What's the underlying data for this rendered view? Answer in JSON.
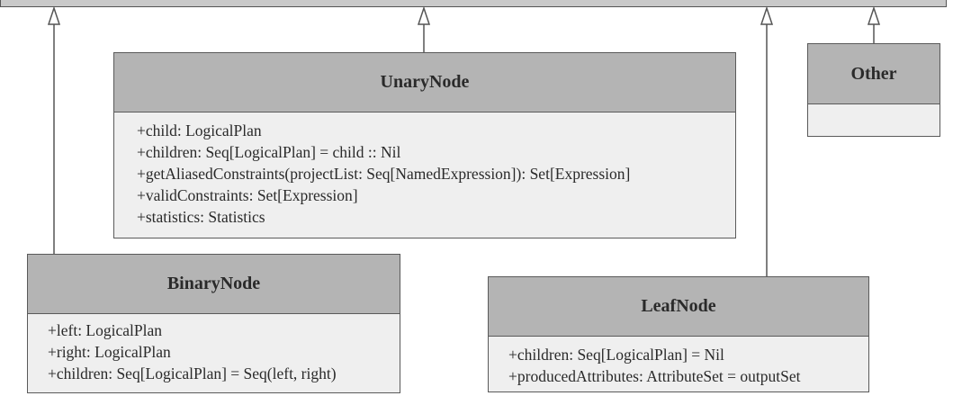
{
  "diagram": {
    "classes": {
      "unary_node": {
        "name": "UnaryNode",
        "members": [
          "+child: LogicalPlan",
          "+children: Seq[LogicalPlan] = child :: Nil",
          "+getAliasedConstraints(projectList: Seq[NamedExpression]): Set[Expression]",
          "+validConstraints: Set[Expression]",
          "+statistics: Statistics"
        ]
      },
      "other": {
        "name": "Other",
        "members": []
      },
      "binary_node": {
        "name": "BinaryNode",
        "members": [
          "+left: LogicalPlan",
          "+right: LogicalPlan",
          "+children: Seq[LogicalPlan] = Seq(left, right)"
        ]
      },
      "leaf_node": {
        "name": "LeafNode",
        "members": [
          "+children: Seq[LogicalPlan] = Nil",
          "+producedAttributes: AttributeSet = outputSet"
        ]
      }
    },
    "relations": [
      {
        "from": "binary_node",
        "to": "parent",
        "type": "generalization"
      },
      {
        "from": "unary_node",
        "to": "parent",
        "type": "generalization"
      },
      {
        "from": "leaf_node",
        "to": "parent",
        "type": "generalization"
      },
      {
        "from": "other",
        "to": "parent",
        "type": "generalization"
      }
    ],
    "colors": {
      "header_fill": "#b4b4b4",
      "body_fill": "#efefef",
      "border": "#5a5a5a",
      "parent_fill": "#c9c9c9"
    }
  }
}
